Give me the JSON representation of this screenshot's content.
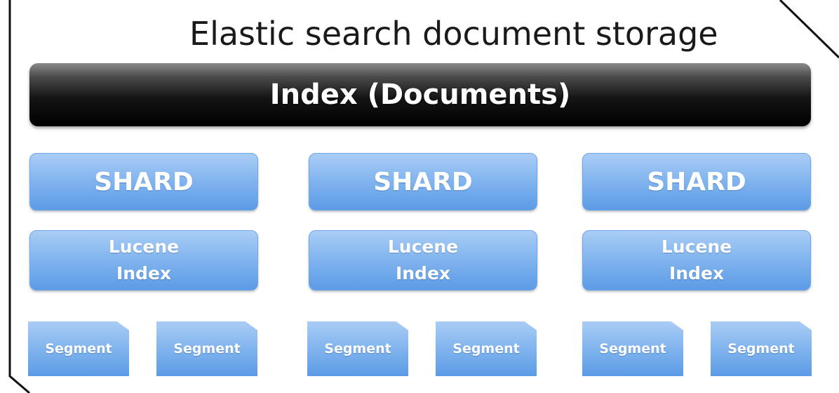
{
  "title": "Elastic search document storage",
  "index_label": "Index (Documents)",
  "shards": [
    {
      "label": "SHARD",
      "lucene_line1": "Lucene",
      "lucene_line2": "Index",
      "segments": [
        "Segment",
        "Segment"
      ]
    },
    {
      "label": "SHARD",
      "lucene_line1": "Lucene",
      "lucene_line2": "Index",
      "segments": [
        "Segment",
        "Segment"
      ]
    },
    {
      "label": "SHARD",
      "lucene_line1": "Lucene",
      "lucene_line2": "Index",
      "segments": [
        "Segment",
        "Segment"
      ]
    }
  ],
  "colors": {
    "index_bar": "#000000",
    "box_fill": "#84b6ef",
    "box_text": "#ffffff",
    "frame_line": "#111111"
  }
}
